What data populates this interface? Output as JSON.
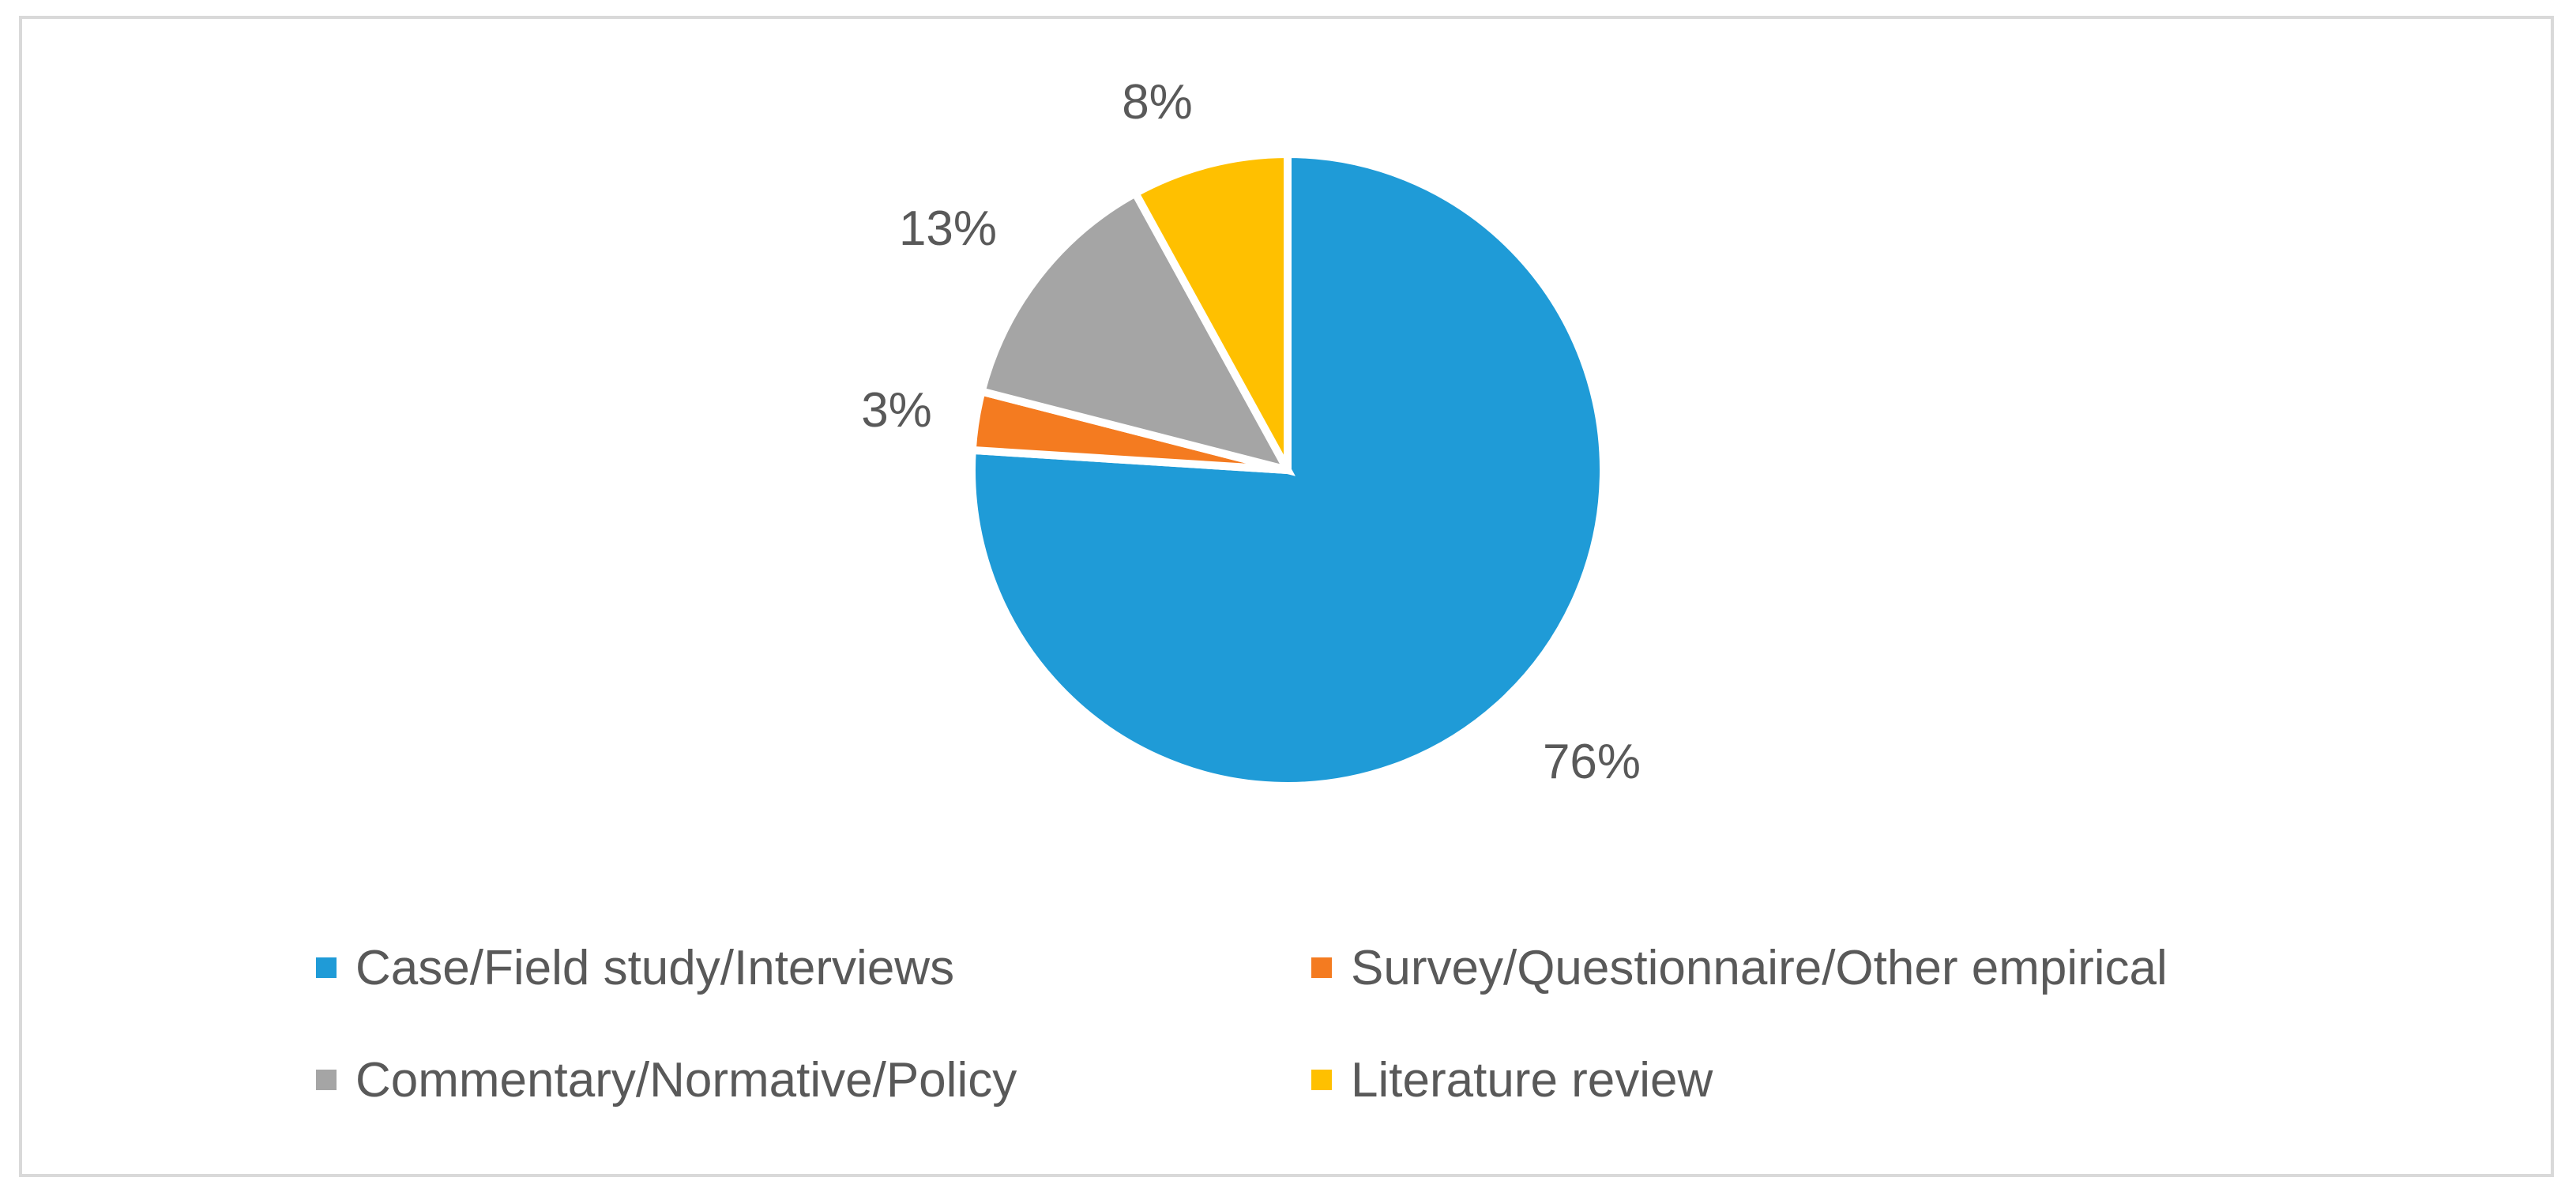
{
  "chart_data": {
    "type": "pie",
    "title": "",
    "slices": [
      {
        "name": "Case/Field study/Interviews",
        "value": 76,
        "label": "76%",
        "color": "#1f9bd7"
      },
      {
        "name": "Survey/Questionnaire/Other empirical",
        "value": 3,
        "label": "3%",
        "color": "#f47b20"
      },
      {
        "name": "Commentary/Normative/Policy",
        "value": 13,
        "label": "13%",
        "color": "#a5a5a5"
      },
      {
        "name": "Literature review",
        "value": 8,
        "label": "8%",
        "color": "#ffc000"
      }
    ],
    "legend_placement": "bottom",
    "legend": [
      {
        "label": "Case/Field study/Interviews",
        "color": "#1f9bd7"
      },
      {
        "label": "Survey/Questionnaire/Other empirical",
        "color": "#f47b20"
      },
      {
        "label": "Commentary/Normative/Policy",
        "color": "#a5a5a5"
      },
      {
        "label": "Literature review",
        "color": "#ffc000"
      }
    ]
  }
}
